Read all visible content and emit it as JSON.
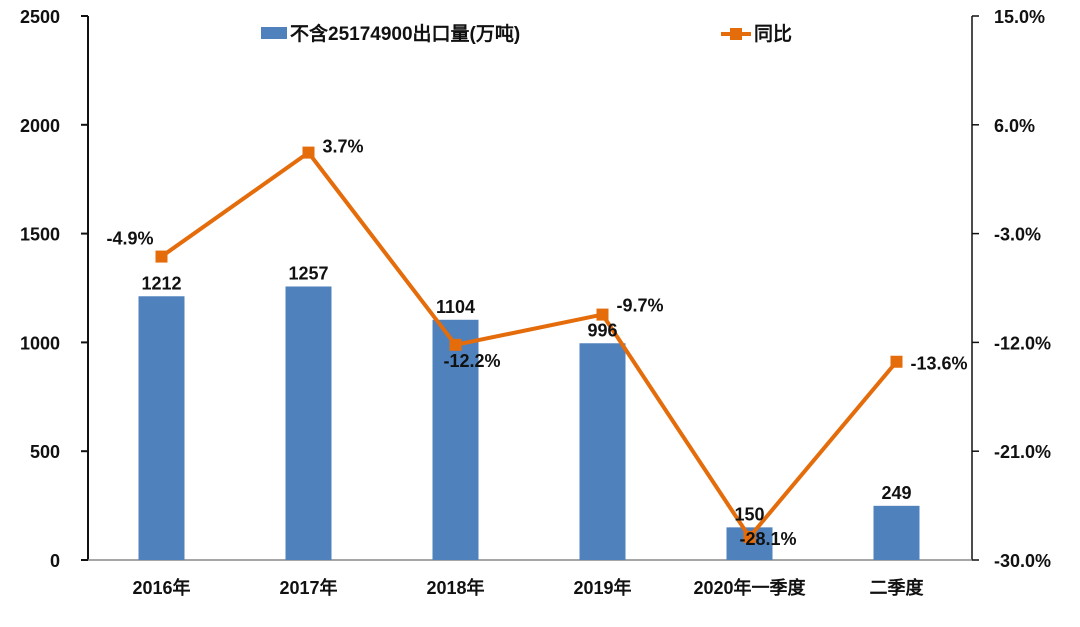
{
  "chart_data": {
    "type": "bar+line",
    "title": "",
    "categories": [
      "2016年",
      "2017年",
      "2018年",
      "2019年",
      "2020年一季度",
      "二季度"
    ],
    "series": [
      {
        "name": "不含25174900出口量(万吨)",
        "type": "bar",
        "axis": "left",
        "color": "#4F81BD",
        "values": [
          1212,
          1257,
          1104,
          996,
          150,
          249
        ],
        "labels": [
          "1212",
          "1257",
          "1104",
          "996",
          "150",
          "249"
        ]
      },
      {
        "name": "同比",
        "type": "line",
        "axis": "right",
        "color": "#E46C0A",
        "marker": "square",
        "values": [
          -4.9,
          3.7,
          -12.2,
          -9.7,
          -28.1,
          -13.6
        ],
        "labels": [
          "-4.9%",
          "3.7%",
          "-12.2%",
          "-9.7%",
          "-28.1%",
          "-13.6%"
        ]
      }
    ],
    "left_axis": {
      "range": [
        0,
        2500
      ],
      "ticks": [
        0,
        500,
        1000,
        1500,
        2000,
        2500
      ],
      "tick_labels": [
        "0",
        "500",
        "1000",
        "1500",
        "2000",
        "2500"
      ]
    },
    "right_axis": {
      "range": [
        -30.0,
        15.0
      ],
      "ticks": [
        -30,
        -21,
        -12,
        -3,
        6,
        15
      ],
      "tick_labels": [
        "-30.0%",
        "-21.0%",
        "-12.0%",
        "-3.0%",
        "6.0%",
        "15.0%"
      ]
    },
    "legend": {
      "position": "top",
      "entries": [
        "不含25174900出口量(万吨)",
        "同比"
      ]
    },
    "grid": false,
    "xlabel": "",
    "ylabel": ""
  }
}
